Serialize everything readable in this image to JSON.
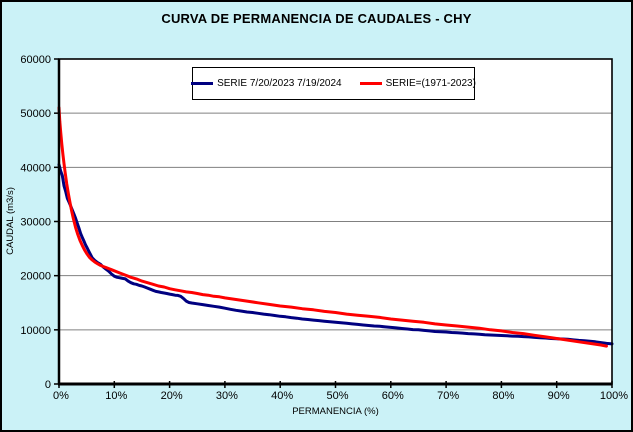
{
  "title": "CURVA DE PERMANENCIA DE CAUDALES - CHY",
  "axes": {
    "x_title": "PERMANENCIA (%)",
    "y_title": "CAUDAL (m3/s)"
  },
  "colors": {
    "background": "#CBF2F7",
    "plot_background": "#FFFFFF",
    "grid": "#808080",
    "axis": "#000000",
    "series_blue": "#000080",
    "series_red": "#FF0000"
  },
  "chart_data": {
    "type": "line",
    "title": "CURVA DE PERMANENCIA DE CAUDALES - CHY",
    "xlabel": "PERMANENCIA (%)",
    "ylabel": "CAUDAL (m3/s)",
    "xlim": [
      0,
      100
    ],
    "ylim": [
      0,
      60000
    ],
    "grid": "horizontal",
    "legend_position": "top-center-inside",
    "x_ticks": [
      {
        "v": 0,
        "label": "0%"
      },
      {
        "v": 10,
        "label": "10%"
      },
      {
        "v": 20,
        "label": "20%"
      },
      {
        "v": 30,
        "label": "30%"
      },
      {
        "v": 40,
        "label": "40%"
      },
      {
        "v": 50,
        "label": "50%"
      },
      {
        "v": 60,
        "label": "60%"
      },
      {
        "v": 70,
        "label": "70%"
      },
      {
        "v": 80,
        "label": "80%"
      },
      {
        "v": 90,
        "label": "90%"
      },
      {
        "v": 100,
        "label": "100%"
      }
    ],
    "y_ticks": [
      {
        "v": 0,
        "label": "0"
      },
      {
        "v": 10000,
        "label": "10000"
      },
      {
        "v": 20000,
        "label": "20000"
      },
      {
        "v": 30000,
        "label": "30000"
      },
      {
        "v": 40000,
        "label": "40000"
      },
      {
        "v": 50000,
        "label": "50000"
      },
      {
        "v": 60000,
        "label": "60000"
      }
    ],
    "series": [
      {
        "name": "SERIE 7/20/2023 7/19/2024",
        "color": "#000080",
        "points": [
          [
            0,
            40500
          ],
          [
            0.3,
            39300
          ],
          [
            0.6,
            38500
          ],
          [
            0.9,
            36600
          ],
          [
            1.2,
            35600
          ],
          [
            1.5,
            34300
          ],
          [
            1.8,
            33600
          ],
          [
            2.1,
            32900
          ],
          [
            2.4,
            32100
          ],
          [
            2.7,
            31400
          ],
          [
            3,
            30600
          ],
          [
            3.3,
            29700
          ],
          [
            3.6,
            28800
          ],
          [
            3.9,
            27800
          ],
          [
            4.2,
            27100
          ],
          [
            4.5,
            26400
          ],
          [
            4.8,
            25700
          ],
          [
            5.1,
            25100
          ],
          [
            5.5,
            24300
          ],
          [
            6,
            23300
          ],
          [
            6.5,
            22800
          ],
          [
            7,
            22400
          ],
          [
            7.5,
            22100
          ],
          [
            8,
            21600
          ],
          [
            8.5,
            21200
          ],
          [
            9,
            20800
          ],
          [
            9.5,
            20300
          ],
          [
            10,
            19900
          ],
          [
            10.5,
            19700
          ],
          [
            11,
            19600
          ],
          [
            11.5,
            19500
          ],
          [
            12,
            19400
          ],
          [
            12.5,
            19000
          ],
          [
            13,
            18700
          ],
          [
            13.5,
            18500
          ],
          [
            14,
            18400
          ],
          [
            14.5,
            18200
          ],
          [
            15,
            18100
          ],
          [
            15.5,
            17900
          ],
          [
            16,
            17700
          ],
          [
            16.5,
            17500
          ],
          [
            17,
            17300
          ],
          [
            17.5,
            17100
          ],
          [
            18,
            17000
          ],
          [
            18.5,
            16900
          ],
          [
            19,
            16800
          ],
          [
            19.5,
            16700
          ],
          [
            20,
            16600
          ],
          [
            20.5,
            16500
          ],
          [
            21,
            16400
          ],
          [
            21.5,
            16350
          ],
          [
            22,
            16200
          ],
          [
            22.5,
            15800
          ],
          [
            23,
            15300
          ],
          [
            23.5,
            15050
          ],
          [
            24,
            14950
          ],
          [
            25,
            14800
          ],
          [
            26,
            14650
          ],
          [
            27,
            14500
          ],
          [
            28,
            14350
          ],
          [
            29,
            14200
          ],
          [
            30,
            14000
          ],
          [
            31,
            13800
          ],
          [
            32,
            13600
          ],
          [
            33,
            13450
          ],
          [
            34,
            13300
          ],
          [
            35,
            13200
          ],
          [
            36,
            13050
          ],
          [
            37,
            12900
          ],
          [
            38,
            12800
          ],
          [
            39,
            12650
          ],
          [
            40,
            12500
          ],
          [
            41,
            12400
          ],
          [
            42,
            12250
          ],
          [
            43,
            12150
          ],
          [
            44,
            12000
          ],
          [
            45,
            11900
          ],
          [
            46,
            11800
          ],
          [
            47,
            11700
          ],
          [
            48,
            11600
          ],
          [
            49,
            11500
          ],
          [
            50,
            11400
          ],
          [
            51,
            11300
          ],
          [
            52,
            11200
          ],
          [
            53,
            11100
          ],
          [
            54,
            11000
          ],
          [
            55,
            10900
          ],
          [
            56,
            10800
          ],
          [
            57,
            10700
          ],
          [
            58,
            10650
          ],
          [
            59,
            10550
          ],
          [
            60,
            10450
          ],
          [
            61,
            10350
          ],
          [
            62,
            10250
          ],
          [
            63,
            10150
          ],
          [
            64,
            10050
          ],
          [
            65,
            10000
          ],
          [
            66,
            9900
          ],
          [
            67,
            9800
          ],
          [
            68,
            9700
          ],
          [
            69,
            9650
          ],
          [
            70,
            9600
          ],
          [
            71,
            9500
          ],
          [
            72,
            9450
          ],
          [
            73,
            9400
          ],
          [
            74,
            9300
          ],
          [
            75,
            9250
          ],
          [
            76,
            9200
          ],
          [
            77,
            9100
          ],
          [
            78,
            9050
          ],
          [
            79,
            9000
          ],
          [
            80,
            8950
          ],
          [
            81,
            8900
          ],
          [
            82,
            8850
          ],
          [
            83,
            8800
          ],
          [
            84,
            8750
          ],
          [
            85,
            8700
          ],
          [
            86,
            8600
          ],
          [
            87,
            8550
          ],
          [
            88,
            8500
          ],
          [
            89,
            8400
          ],
          [
            90,
            8350
          ],
          [
            91,
            8300
          ],
          [
            92,
            8250
          ],
          [
            93,
            8150
          ],
          [
            94,
            8050
          ],
          [
            95,
            8000
          ],
          [
            96,
            7900
          ],
          [
            97,
            7800
          ],
          [
            98,
            7650
          ],
          [
            99,
            7500
          ],
          [
            100,
            7400
          ]
        ]
      },
      {
        "name": "SERIE=(1971-2023)",
        "color": "#FF0000",
        "points": [
          [
            0,
            51000
          ],
          [
            0.15,
            48500
          ],
          [
            0.3,
            46500
          ],
          [
            0.5,
            44300
          ],
          [
            0.7,
            42400
          ],
          [
            0.9,
            40700
          ],
          [
            1.1,
            39100
          ],
          [
            1.4,
            37000
          ],
          [
            1.7,
            35100
          ],
          [
            2,
            33400
          ],
          [
            2.3,
            31900
          ],
          [
            2.6,
            30500
          ],
          [
            3,
            28900
          ],
          [
            3.4,
            27600
          ],
          [
            3.8,
            26500
          ],
          [
            4.2,
            25600
          ],
          [
            4.6,
            24800
          ],
          [
            5,
            24100
          ],
          [
            5.5,
            23400
          ],
          [
            6,
            22900
          ],
          [
            6.5,
            22500
          ],
          [
            7,
            22200
          ],
          [
            7.5,
            21900
          ],
          [
            8,
            21700
          ],
          [
            8.5,
            21500
          ],
          [
            9,
            21300
          ],
          [
            9.5,
            21100
          ],
          [
            10,
            20900
          ],
          [
            11,
            20500
          ],
          [
            12,
            20100
          ],
          [
            13,
            19700
          ],
          [
            14,
            19400
          ],
          [
            15,
            19000
          ],
          [
            16,
            18700
          ],
          [
            17,
            18400
          ],
          [
            18,
            18100
          ],
          [
            19,
            17900
          ],
          [
            20,
            17600
          ],
          [
            21,
            17400
          ],
          [
            22,
            17200
          ],
          [
            23,
            17000
          ],
          [
            24,
            16900
          ],
          [
            25,
            16700
          ],
          [
            26,
            16500
          ],
          [
            27,
            16400
          ],
          [
            28,
            16200
          ],
          [
            29,
            16100
          ],
          [
            30,
            15900
          ],
          [
            32,
            15600
          ],
          [
            34,
            15300
          ],
          [
            36,
            15000
          ],
          [
            38,
            14700
          ],
          [
            40,
            14400
          ],
          [
            42,
            14200
          ],
          [
            44,
            13900
          ],
          [
            46,
            13700
          ],
          [
            48,
            13400
          ],
          [
            50,
            13200
          ],
          [
            52,
            12900
          ],
          [
            54,
            12700
          ],
          [
            56,
            12500
          ],
          [
            58,
            12300
          ],
          [
            60,
            12000
          ],
          [
            62,
            11800
          ],
          [
            64,
            11600
          ],
          [
            66,
            11400
          ],
          [
            68,
            11100
          ],
          [
            70,
            10900
          ],
          [
            72,
            10700
          ],
          [
            74,
            10500
          ],
          [
            76,
            10300
          ],
          [
            78,
            10000
          ],
          [
            80,
            9800
          ],
          [
            82,
            9500
          ],
          [
            84,
            9300
          ],
          [
            86,
            9000
          ],
          [
            88,
            8700
          ],
          [
            90,
            8400
          ],
          [
            92,
            8100
          ],
          [
            94,
            7800
          ],
          [
            96,
            7500
          ],
          [
            98,
            7200
          ],
          [
            99,
            7000
          ]
        ]
      }
    ]
  }
}
